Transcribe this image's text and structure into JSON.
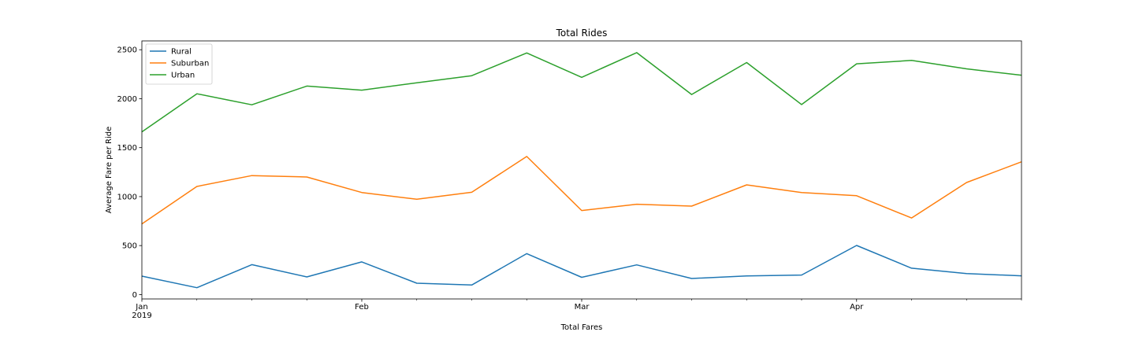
{
  "chart_data": {
    "type": "line",
    "title": "Total Rides",
    "xlabel": "Total Fares",
    "ylabel": "Average Fare per Ride",
    "x": [
      "2019-01-06",
      "2019-01-13",
      "2019-01-20",
      "2019-01-27",
      "2019-02-03",
      "2019-02-10",
      "2019-02-17",
      "2019-02-24",
      "2019-03-03",
      "2019-03-10",
      "2019-03-17",
      "2019-03-24",
      "2019-03-31",
      "2019-04-07",
      "2019-04-14",
      "2019-04-21",
      "2019-04-28"
    ],
    "xlim": [
      "2019-01-06",
      "2019-04-28"
    ],
    "x_tick_labels": [
      {
        "date": "2019-01-06",
        "label": "Jan",
        "sublabel": "2019"
      },
      {
        "date": "2019-02-03",
        "label": "Feb",
        "sublabel": ""
      },
      {
        "date": "2019-03-03",
        "label": "Mar",
        "sublabel": ""
      },
      {
        "date": "2019-04-07",
        "label": "Apr",
        "sublabel": ""
      }
    ],
    "y_ticks": [
      0,
      500,
      1000,
      1500,
      2000,
      2500
    ],
    "ylim": [
      -45,
      2590
    ],
    "grid": false,
    "legend_position": "top-left",
    "series": [
      {
        "name": "Rural",
        "color": "#1f77b4",
        "values": [
          188,
          70,
          305,
          180,
          333,
          116,
          97,
          418,
          176,
          303,
          164,
          190,
          199,
          501,
          269,
          214,
          191
        ]
      },
      {
        "name": "Suburban",
        "color": "#ff7f0e",
        "values": [
          721,
          1104,
          1215,
          1200,
          1042,
          973,
          1044,
          1410,
          858,
          922,
          903,
          1120,
          1042,
          1009,
          782,
          1144,
          1355
        ]
      },
      {
        "name": "Urban",
        "color": "#2ca02c",
        "values": [
          1661,
          2050,
          1938,
          2129,
          2087,
          2163,
          2235,
          2467,
          2218,
          2470,
          2043,
          2369,
          1940,
          2356,
          2391,
          2305,
          2240
        ]
      }
    ]
  }
}
